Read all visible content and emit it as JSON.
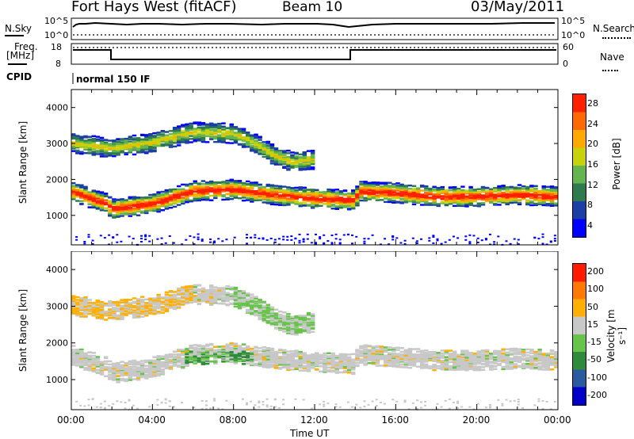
{
  "header": {
    "station": "Fort Hays West (fitACF)",
    "beam": "Beam 10",
    "date": "03/May/2011"
  },
  "top_panel": {
    "left_label_top": "N.Sky",
    "right_label_top": "N.Search",
    "left_label_freq_1": "Freq.",
    "left_label_freq_2": "[MHz]",
    "right_label_nave": "Nave",
    "cpid_label": "CPID",
    "cpid_value": "normal 150 IF",
    "noise_left_ticks": [
      "10^5",
      "10^0"
    ],
    "noise_right_ticks": [
      "10^5",
      "10^0"
    ],
    "freq_ticks": [
      "18",
      "8"
    ],
    "nave_ticks": [
      "60",
      "0"
    ]
  },
  "chart_data": [
    {
      "type": "heatmap",
      "name": "power",
      "ylabel": "Slant Range [km]",
      "y_ticks": [
        "1000",
        "2000",
        "3000",
        "4000"
      ],
      "ylim": [
        180,
        4500
      ],
      "colorbar_label": "Power [dB]",
      "colorbar_ticks": [
        "4",
        "8",
        "12",
        "16",
        "20",
        "24",
        "28"
      ],
      "colors": [
        "#0000ff",
        "#1b3fa3",
        "#2f7a4e",
        "#64b450",
        "#c8d20a",
        "#ffaa00",
        "#ff6a00",
        "#ff2000"
      ],
      "bands": [
        {
          "center": [
            [
              0,
              3050
            ],
            [
              2,
              2900
            ],
            [
              4,
              3050
            ],
            [
              6,
              3350
            ],
            [
              8,
              3300
            ],
            [
              9,
              3050
            ],
            [
              10,
              2700
            ],
            [
              11,
              2500
            ],
            [
              12,
              2600
            ]
          ],
          "width": 550
        },
        {
          "center": [
            [
              0,
              1700
            ],
            [
              1,
              1500
            ],
            [
              1.8,
              1350
            ],
            [
              2,
              1200
            ],
            [
              4,
              1350
            ],
            [
              6,
              1700
            ],
            [
              8,
              1750
            ],
            [
              10,
              1600
            ],
            [
              12,
              1500
            ],
            [
              14,
              1450
            ],
            [
              14.2,
              1700
            ],
            [
              16,
              1650
            ],
            [
              18,
              1550
            ],
            [
              20,
              1550
            ],
            [
              22,
              1600
            ],
            [
              24,
              1550
            ]
          ],
          "width": 550
        }
      ]
    },
    {
      "type": "heatmap",
      "name": "velocity",
      "ylabel": "Slant Range [km]",
      "xlabel": "Time UT",
      "x_ticks": [
        "00:00",
        "04:00",
        "08:00",
        "12:00",
        "16:00",
        "20:00",
        "00:00"
      ],
      "y_ticks": [
        "1000",
        "2000",
        "3000",
        "4000"
      ],
      "ylim": [
        180,
        4500
      ],
      "colorbar_label": "Velocity [m s⁻¹]",
      "colorbar_ticks": [
        "200",
        "100",
        "50",
        "15",
        "-15",
        "-50",
        "-100",
        "-200"
      ],
      "colors": [
        "#0000c8",
        "#2a5aa0",
        "#2f8a3a",
        "#66c44a",
        "#c8c8c8",
        "#ffb000",
        "#ff7800",
        "#ff1a00"
      ]
    }
  ]
}
